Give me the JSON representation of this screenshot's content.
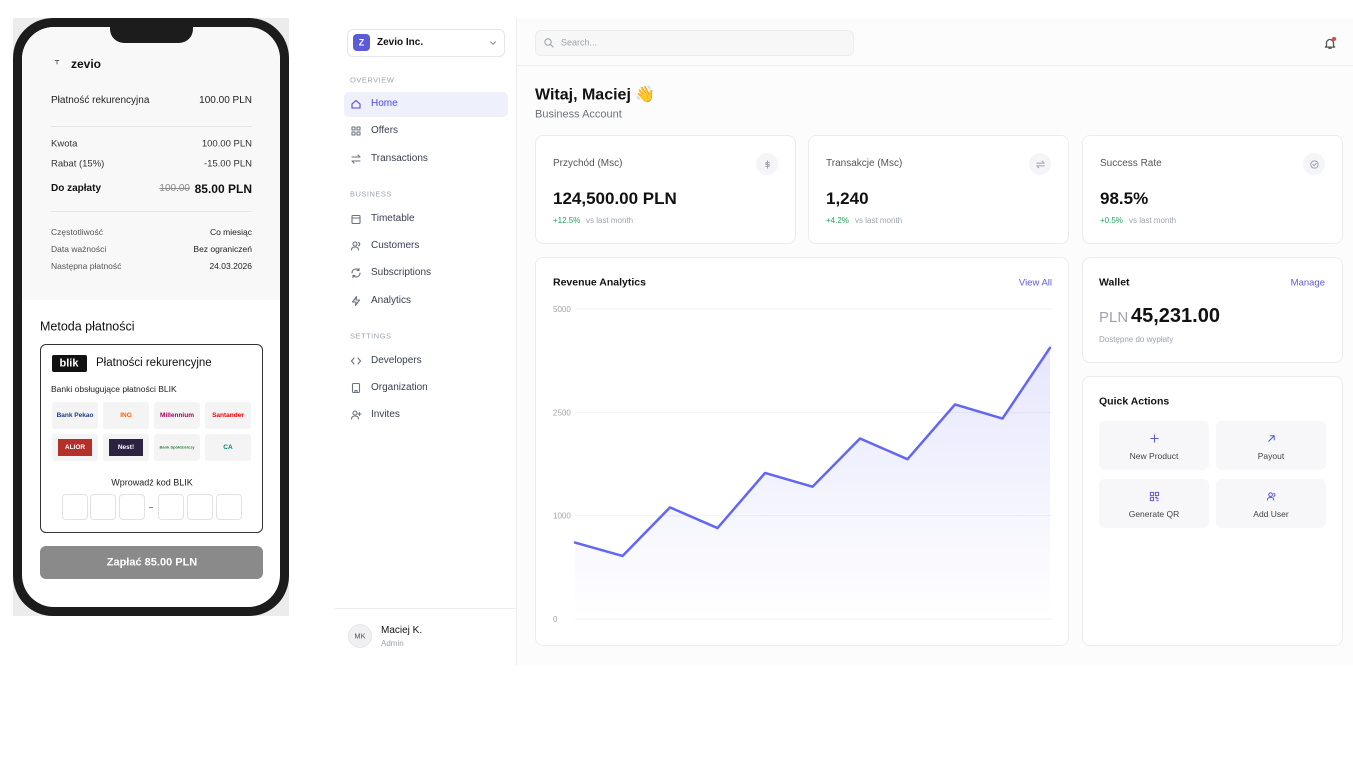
{
  "phone": {
    "brand": "zevio",
    "summary": {
      "label": "Płatność rekurencyjna",
      "value": "100.00 PLN"
    },
    "amounts": [
      {
        "label": "Kwota",
        "value": "100.00 PLN"
      },
      {
        "label": "Rabat (15%)",
        "value": "-15.00 PLN"
      }
    ],
    "total": {
      "label": "Do zapłaty",
      "old_value": "100.00",
      "value": "85.00 PLN"
    },
    "details": [
      {
        "label": "Częstotliwość",
        "value": "Co miesiąc"
      },
      {
        "label": "Data ważności",
        "value": "Bez ograniczeń"
      },
      {
        "label": "Następna płatność",
        "value": "24.03.2026"
      }
    ],
    "method_title": "Metoda płatności",
    "blik": {
      "logo": "blik",
      "title": "Płatności rekurencyjne",
      "banks_label": "Banki obsługujące płatności BLIK",
      "banks": [
        "Bank Pekao",
        "ING",
        "Millennium",
        "Santander",
        "ALIOR",
        "Nest!",
        "Bank Spółdzielczy",
        "CA"
      ],
      "code_label": "Wprowadź kod BLIK"
    },
    "pay_button": "Zapłać 85.00 PLN"
  },
  "sidebar": {
    "company_initial": "Z",
    "company": "Zevio Inc.",
    "sections": [
      {
        "title": "OVERVIEW",
        "items": [
          "Home",
          "Offers",
          "Transactions"
        ]
      },
      {
        "title": "BUSINESS",
        "items": [
          "Timetable",
          "Customers",
          "Subscriptions",
          "Analytics"
        ]
      },
      {
        "title": "SETTINGS",
        "items": [
          "Developers",
          "Organization",
          "Invites"
        ]
      }
    ],
    "user": {
      "initials": "MK",
      "name": "Maciej K.",
      "role": "Admin"
    }
  },
  "header": {
    "search_placeholder": "Search..."
  },
  "greeting": {
    "title": "Witaj, Maciej 👋",
    "subtitle": "Business Account"
  },
  "stats": [
    {
      "label": "Przychód (Msc)",
      "value": "124,500.00 PLN",
      "change": "+12.5%",
      "note": "vs last month"
    },
    {
      "label": "Transakcje (Msc)",
      "value": "1,240",
      "change": "+4.2%",
      "note": "vs last month"
    },
    {
      "label": "Success Rate",
      "value": "98.5%",
      "change": "+0.5%",
      "note": "vs last month"
    }
  ],
  "chart_data": {
    "type": "line",
    "title": "Revenue Analytics",
    "action": "View All",
    "categories": [
      null,
      null,
      null,
      null,
      null,
      null,
      null,
      null,
      null,
      null,
      null
    ],
    "values": [
      740,
      610,
      1120,
      880,
      1620,
      1420,
      2120,
      1820,
      2690,
      2410,
      4060
    ],
    "color": "#6366f1",
    "ylim": [
      0,
      5000
    ],
    "yticks": [
      0,
      1000,
      2500,
      5000
    ],
    "grid": true
  },
  "wallet": {
    "title": "Wallet",
    "action": "Manage",
    "currency": "PLN",
    "amount": "45,231.00",
    "note": "Dostępne do wypłaty"
  },
  "quick_actions": {
    "title": "Quick Actions",
    "items": [
      "New Product",
      "Payout",
      "Generate QR",
      "Add User"
    ]
  }
}
